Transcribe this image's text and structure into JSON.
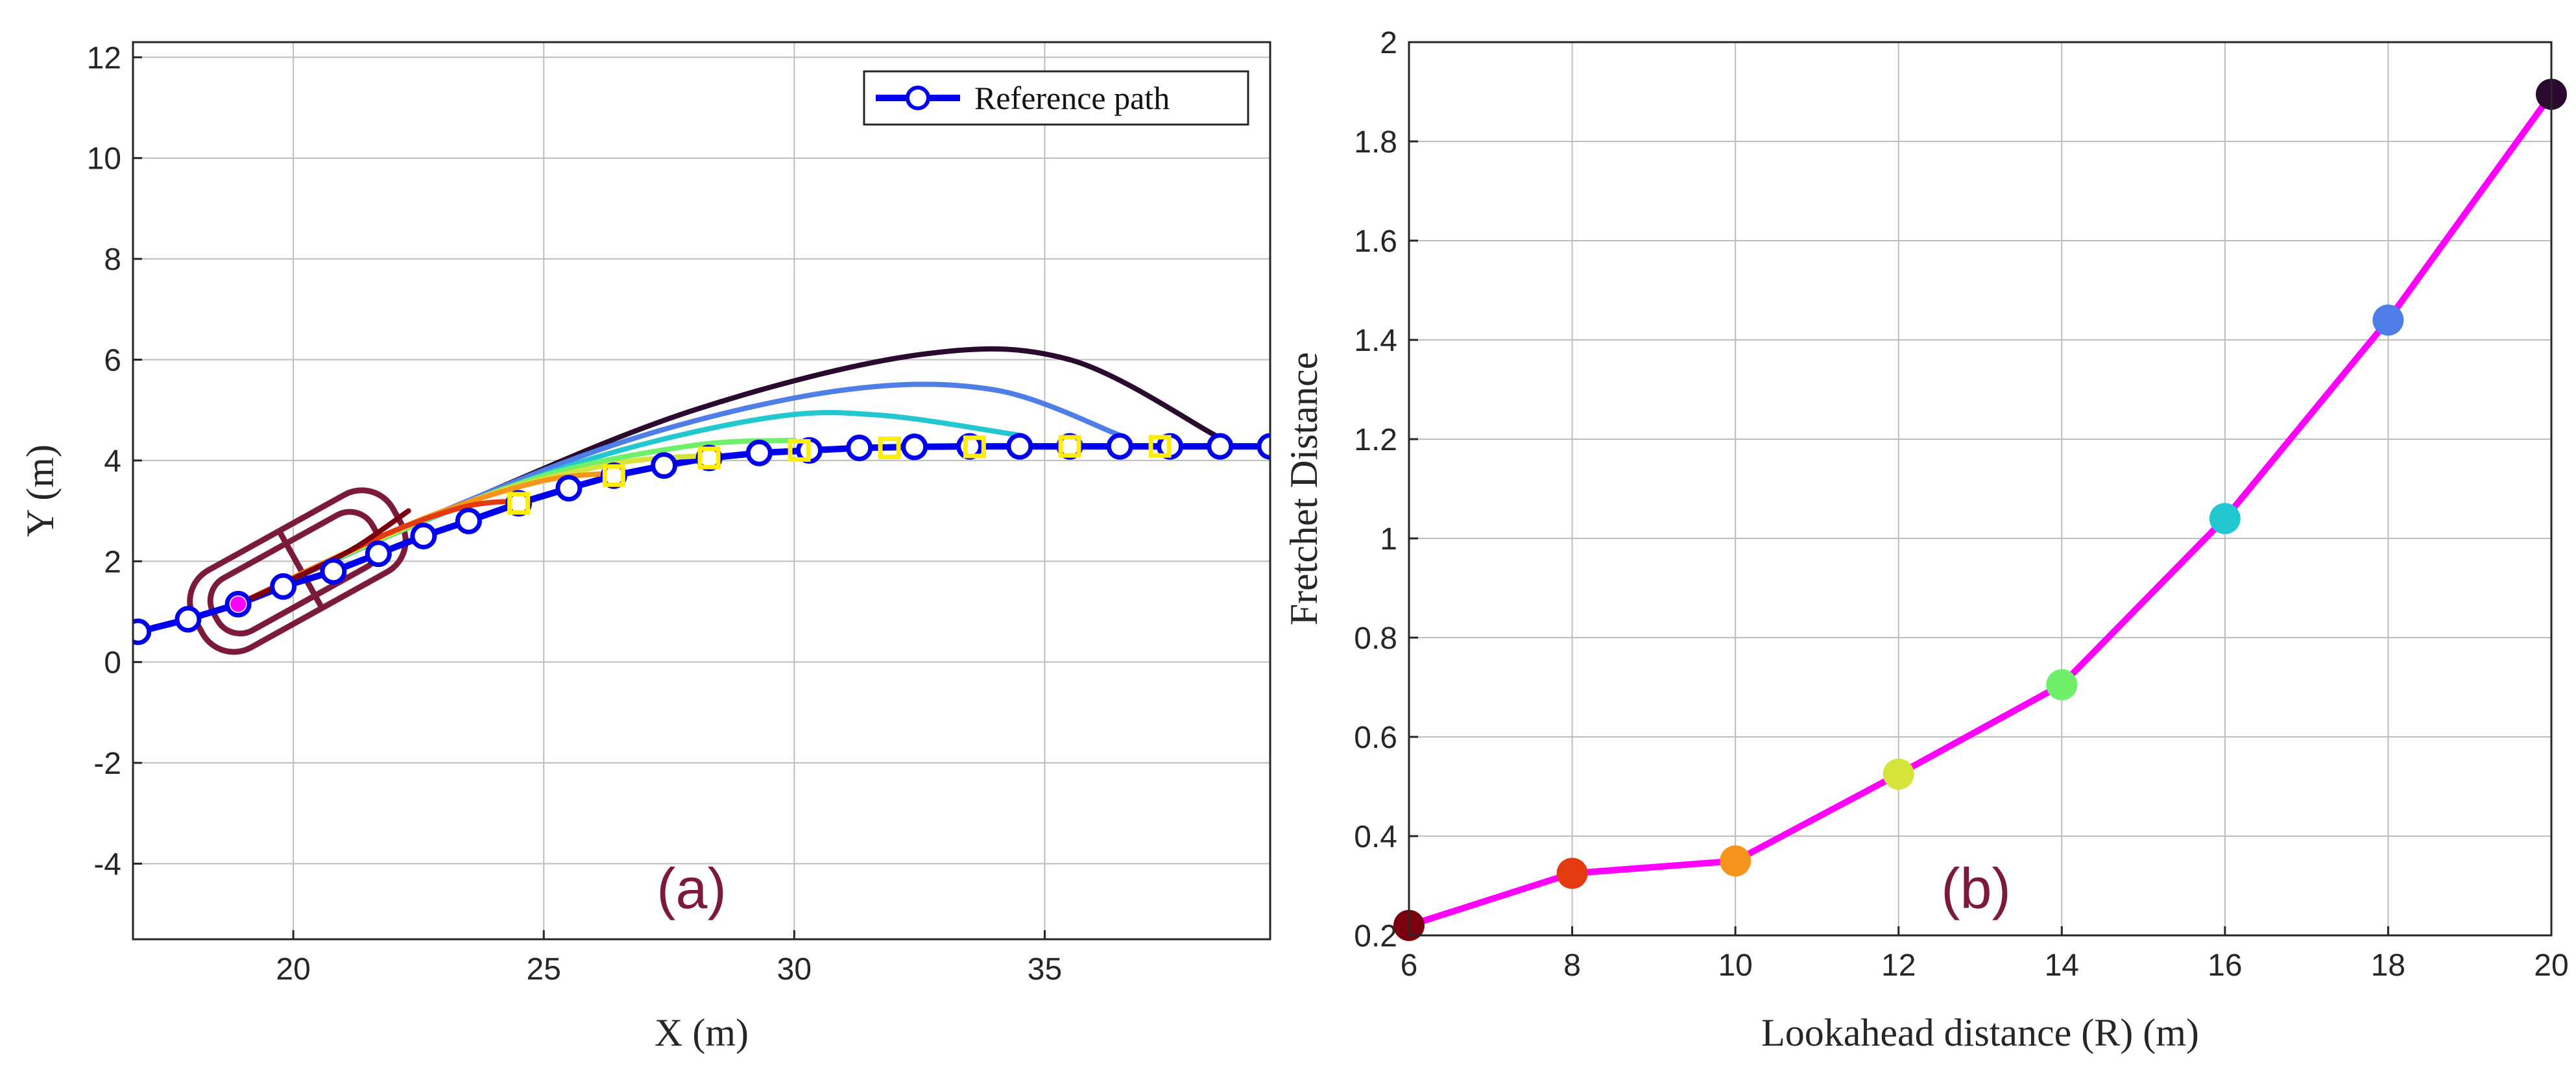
{
  "chart_data": [
    {
      "id": "a",
      "type": "line",
      "panel_label": "(a)",
      "xlabel": "X (m)",
      "ylabel": "Y (m)",
      "xlim": [
        16.8,
        39.5
      ],
      "ylim": [
        -5.5,
        12.3
      ],
      "x_ticks": [
        20,
        25,
        30,
        35
      ],
      "y_ticks": [
        -4,
        -2,
        0,
        2,
        4,
        6,
        8,
        10,
        12
      ],
      "grid": true,
      "legend": {
        "position": "top-right",
        "entries": [
          "Reference path"
        ]
      },
      "reference_path": {
        "name": "Reference path",
        "color": "#0000ee",
        "x": [
          16.9,
          17.9,
          18.9,
          19.8,
          20.8,
          21.7,
          22.6,
          23.5,
          24.5,
          25.5,
          26.4,
          27.4,
          28.3,
          29.3,
          30.3,
          31.3,
          32.4,
          33.5,
          34.5,
          35.5,
          36.5,
          37.5,
          38.5,
          39.5
        ],
        "y": [
          0.6,
          0.85,
          1.15,
          1.5,
          1.8,
          2.15,
          2.5,
          2.8,
          3.15,
          3.45,
          3.7,
          3.9,
          4.05,
          4.15,
          4.2,
          4.25,
          4.27,
          4.28,
          4.28,
          4.28,
          4.28,
          4.28,
          4.28,
          4.28
        ]
      },
      "predicted_paths": [
        {
          "lookahead": 6,
          "color": "#7a0010",
          "x": [
            18.9,
            20.0,
            21.2,
            22.3
          ],
          "y": [
            1.15,
            1.65,
            2.25,
            3.0
          ]
        },
        {
          "lookahead": 8,
          "color": "#e33a10",
          "x": [
            18.9,
            20.4,
            22.0,
            23.5,
            24.6
          ],
          "y": [
            1.15,
            1.85,
            2.6,
            3.1,
            3.2
          ]
        },
        {
          "lookahead": 10,
          "color": "#f7941d",
          "x": [
            18.9,
            21.0,
            23.0,
            25.0,
            26.4
          ],
          "y": [
            1.15,
            2.15,
            3.0,
            3.6,
            3.75
          ]
        },
        {
          "lookahead": 12,
          "color": "#d6e33a",
          "x": [
            18.9,
            21.5,
            24.0,
            26.5,
            28.3
          ],
          "y": [
            1.15,
            2.35,
            3.35,
            3.95,
            4.1
          ]
        },
        {
          "lookahead": 14,
          "color": "#6ef06a",
          "x": [
            18.9,
            22.0,
            25.0,
            28.0,
            30.0
          ],
          "y": [
            1.15,
            2.55,
            3.7,
            4.3,
            4.4
          ]
        },
        {
          "lookahead": 16,
          "color": "#23c7cf",
          "x": [
            18.9,
            22.5,
            26.0,
            29.5,
            31.7,
            34.5
          ],
          "y": [
            1.15,
            2.75,
            4.05,
            4.85,
            4.9,
            4.5
          ]
        },
        {
          "lookahead": 18,
          "color": "#4f7fe6",
          "x": [
            18.9,
            23.0,
            27.0,
            31.0,
            34.0,
            36.5
          ],
          "y": [
            1.15,
            3.0,
            4.5,
            5.4,
            5.4,
            4.5
          ]
        },
        {
          "lookahead": 20,
          "color": "#2a0a2e",
          "x": [
            18.9,
            23.5,
            28.0,
            32.5,
            35.5,
            38.4
          ],
          "y": [
            1.15,
            3.2,
            5.0,
            6.1,
            6.0,
            4.5
          ]
        }
      ],
      "target_points": {
        "x": [
          24.5,
          26.4,
          28.3,
          30.1,
          31.9,
          33.6,
          35.5,
          37.3
        ],
        "y": [
          3.15,
          3.7,
          4.05,
          4.2,
          4.25,
          4.27,
          4.28,
          4.28
        ],
        "color": "#ffee00"
      },
      "vehicle": {
        "x": 18.9,
        "y": 1.15,
        "heading_deg": 29,
        "color": "#7b1a3c"
      }
    },
    {
      "id": "b",
      "type": "line",
      "panel_label": "(b)",
      "xlabel": "Lookahead distance (R) (m)",
      "ylabel": "Fretchet Distance",
      "xlim": [
        6,
        20
      ],
      "ylim": [
        0.2,
        2.0
      ],
      "x_ticks": [
        6,
        8,
        10,
        12,
        14,
        16,
        18,
        20
      ],
      "y_ticks": [
        0.2,
        0.4,
        0.6,
        0.8,
        1,
        1.2,
        1.4,
        1.6,
        1.8,
        2
      ],
      "grid": true,
      "series": [
        {
          "name": "Frechet distance",
          "color": "#ff00ff",
          "x": [
            6,
            8,
            10,
            12,
            14,
            16,
            18,
            20
          ],
          "y": [
            0.22,
            0.325,
            0.35,
            0.525,
            0.705,
            1.04,
            1.44,
            1.895
          ],
          "marker_colors": [
            "#7a0010",
            "#e33a10",
            "#f7941d",
            "#d6e33a",
            "#6ef06a",
            "#23c7cf",
            "#4f7fe6",
            "#2a0a2e"
          ]
        }
      ]
    }
  ]
}
